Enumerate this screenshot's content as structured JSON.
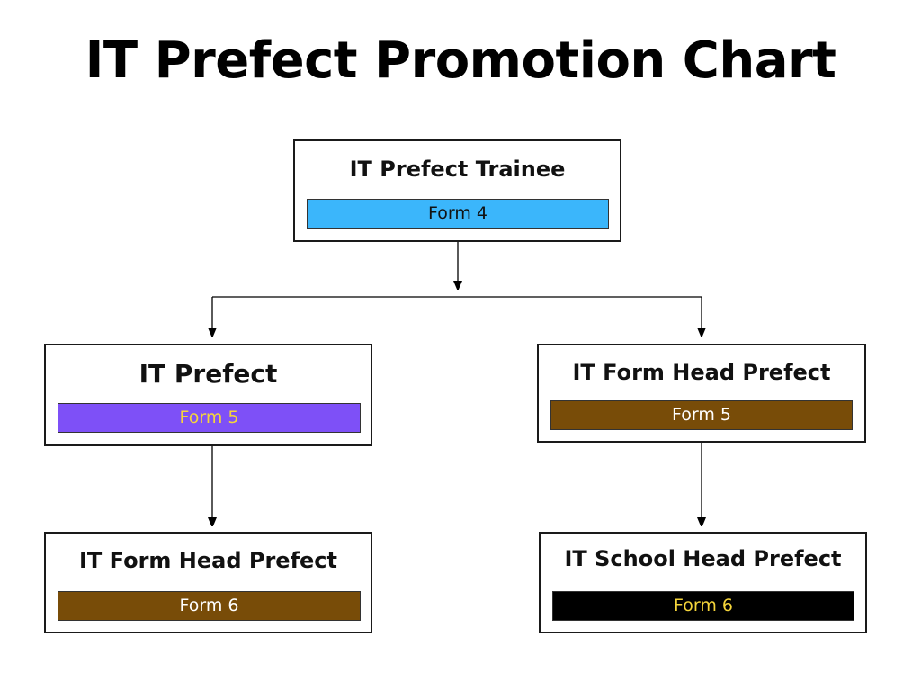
{
  "title": "IT Prefect Promotion Chart",
  "nodes": {
    "trainee": {
      "title": "IT Prefect Trainee",
      "form": "Form 4",
      "bar_color": "#3bb6fb",
      "text_color": "#111111"
    },
    "prefect": {
      "title": "IT Prefect",
      "form": "Form 5",
      "bar_color": "#7e50f7",
      "text_color": "#f5d53b"
    },
    "form_head_5": {
      "title": "IT Form Head Prefect",
      "form": "Form 5",
      "bar_color": "#784c08",
      "text_color": "#ffffff"
    },
    "form_head_6": {
      "title": "IT Form Head Prefect",
      "form": "Form 6",
      "bar_color": "#784c08",
      "text_color": "#ffffff"
    },
    "school_head": {
      "title": "IT School Head Prefect",
      "form": "Form 6",
      "bar_color": "#000000",
      "text_color": "#f5d53b"
    }
  }
}
